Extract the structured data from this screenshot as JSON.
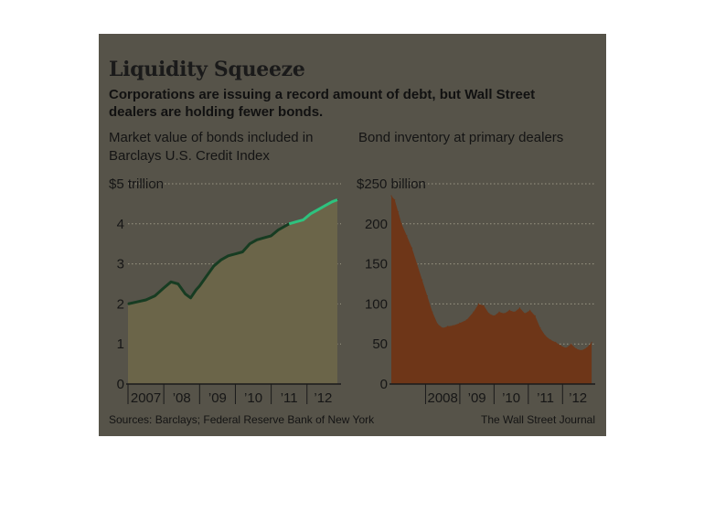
{
  "header": {
    "title": "Liquidity Squeeze",
    "subtitle": "Corporations are issuing a record amount of debt, but Wall Street dealers are holding fewer bonds."
  },
  "footer": {
    "source": "Sources: Barclays; Federal Reserve Bank of New York",
    "credit": "The Wall Street Journal"
  },
  "colors": {
    "background": "#565349",
    "left_fill": "#6b6549",
    "left_line": "#173c22",
    "left_line_recent": "#2ec27e",
    "right_fill": "#6e3618",
    "gridline": "#9a9684"
  },
  "chart_data": [
    {
      "type": "area",
      "title": "Market value of bonds included in Barclays U.S. Credit Index",
      "y_unit_label": "$5 trillion",
      "ylim": [
        0,
        5
      ],
      "y_ticks": [
        0,
        1,
        2,
        3,
        4,
        5
      ],
      "y_tick_labels": [
        "0",
        "1",
        "2",
        "3",
        "4",
        "$5 trillion"
      ],
      "xlim": [
        2007.0,
        2012.9
      ],
      "x_tick_labels": [
        {
          "label": "2007",
          "at": 2007.0
        },
        {
          "label": "’08",
          "at": 2008.0
        },
        {
          "label": "’09",
          "at": 2009.0
        },
        {
          "label": "’10",
          "at": 2010.0
        },
        {
          "label": "’11",
          "at": 2011.0
        },
        {
          "label": "’12",
          "at": 2012.0
        }
      ],
      "grid": true,
      "series": [
        {
          "x": [
            2007.0,
            2007.25,
            2007.5,
            2007.75,
            2008.0,
            2008.2,
            2008.4,
            2008.6,
            2008.75,
            2008.9,
            2009.0,
            2009.2,
            2009.4,
            2009.6,
            2009.8,
            2010.0,
            2010.2,
            2010.4,
            2010.6,
            2010.8,
            2011.0,
            2011.2,
            2011.4,
            2011.5,
            2011.7,
            2011.9,
            2012.1,
            2012.3,
            2012.5,
            2012.7,
            2012.85
          ],
          "y": [
            2.0,
            2.05,
            2.1,
            2.2,
            2.4,
            2.55,
            2.5,
            2.25,
            2.15,
            2.35,
            2.45,
            2.7,
            2.95,
            3.1,
            3.2,
            3.25,
            3.3,
            3.5,
            3.6,
            3.65,
            3.7,
            3.85,
            3.95,
            4.0,
            4.05,
            4.1,
            4.25,
            4.35,
            4.45,
            4.55,
            4.6
          ]
        }
      ]
    },
    {
      "type": "area",
      "title": "Bond inventory at primary dealers",
      "y_unit_label": "$250 billion",
      "ylim": [
        0,
        250
      ],
      "y_ticks": [
        0,
        50,
        100,
        150,
        200,
        250
      ],
      "y_tick_labels": [
        "0",
        "50",
        "100",
        "150",
        "200",
        "$250 billion"
      ],
      "xlim": [
        2007.0,
        2012.9
      ],
      "x_tick_labels": [
        {
          "label": "2008",
          "at": 2008.0
        },
        {
          "label": "’09",
          "at": 2009.0
        },
        {
          "label": "’10",
          "at": 2010.0
        },
        {
          "label": "’11",
          "at": 2011.0
        },
        {
          "label": "’12",
          "at": 2012.0
        }
      ],
      "grid": true,
      "series": [
        {
          "x": [
            2007.0,
            2007.1,
            2007.2,
            2007.3,
            2007.45,
            2007.6,
            2007.75,
            2007.9,
            2008.05,
            2008.2,
            2008.35,
            2008.5,
            2008.65,
            2008.8,
            2009.0,
            2009.2,
            2009.4,
            2009.55,
            2009.7,
            2009.85,
            2010.0,
            2010.15,
            2010.3,
            2010.45,
            2010.6,
            2010.75,
            2010.9,
            2011.05,
            2011.2,
            2011.35,
            2011.5,
            2011.65,
            2011.8,
            2011.95,
            2012.1,
            2012.25,
            2012.4,
            2012.55,
            2012.7,
            2012.85
          ],
          "y": [
            235,
            230,
            215,
            200,
            185,
            170,
            150,
            130,
            110,
            90,
            75,
            70,
            72,
            73,
            76,
            80,
            90,
            100,
            98,
            88,
            85,
            90,
            88,
            92,
            90,
            95,
            88,
            92,
            85,
            70,
            60,
            55,
            52,
            48,
            45,
            50,
            44,
            42,
            45,
            52
          ]
        }
      ]
    }
  ]
}
